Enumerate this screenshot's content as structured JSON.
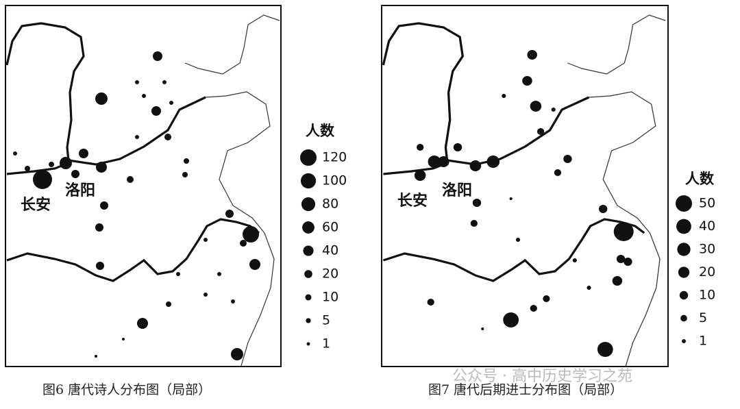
{
  "maps": [
    {
      "legend": {
        "title": "人数",
        "items": [
          120,
          100,
          80,
          60,
          40,
          20,
          10,
          5,
          1
        ]
      },
      "cities": [
        "长安",
        "洛阳"
      ],
      "caption": "图6 唐代诗人分布图（局部）"
    },
    {
      "legend": {
        "title": "人数",
        "items": [
          50,
          40,
          30,
          20,
          10,
          5,
          1
        ]
      },
      "cities": [
        "长安",
        "洛阳"
      ],
      "caption": "图7 唐代后期进士分布图（局部）"
    }
  ],
  "watermark": "公众号 · 高中历史学习之苑"
}
